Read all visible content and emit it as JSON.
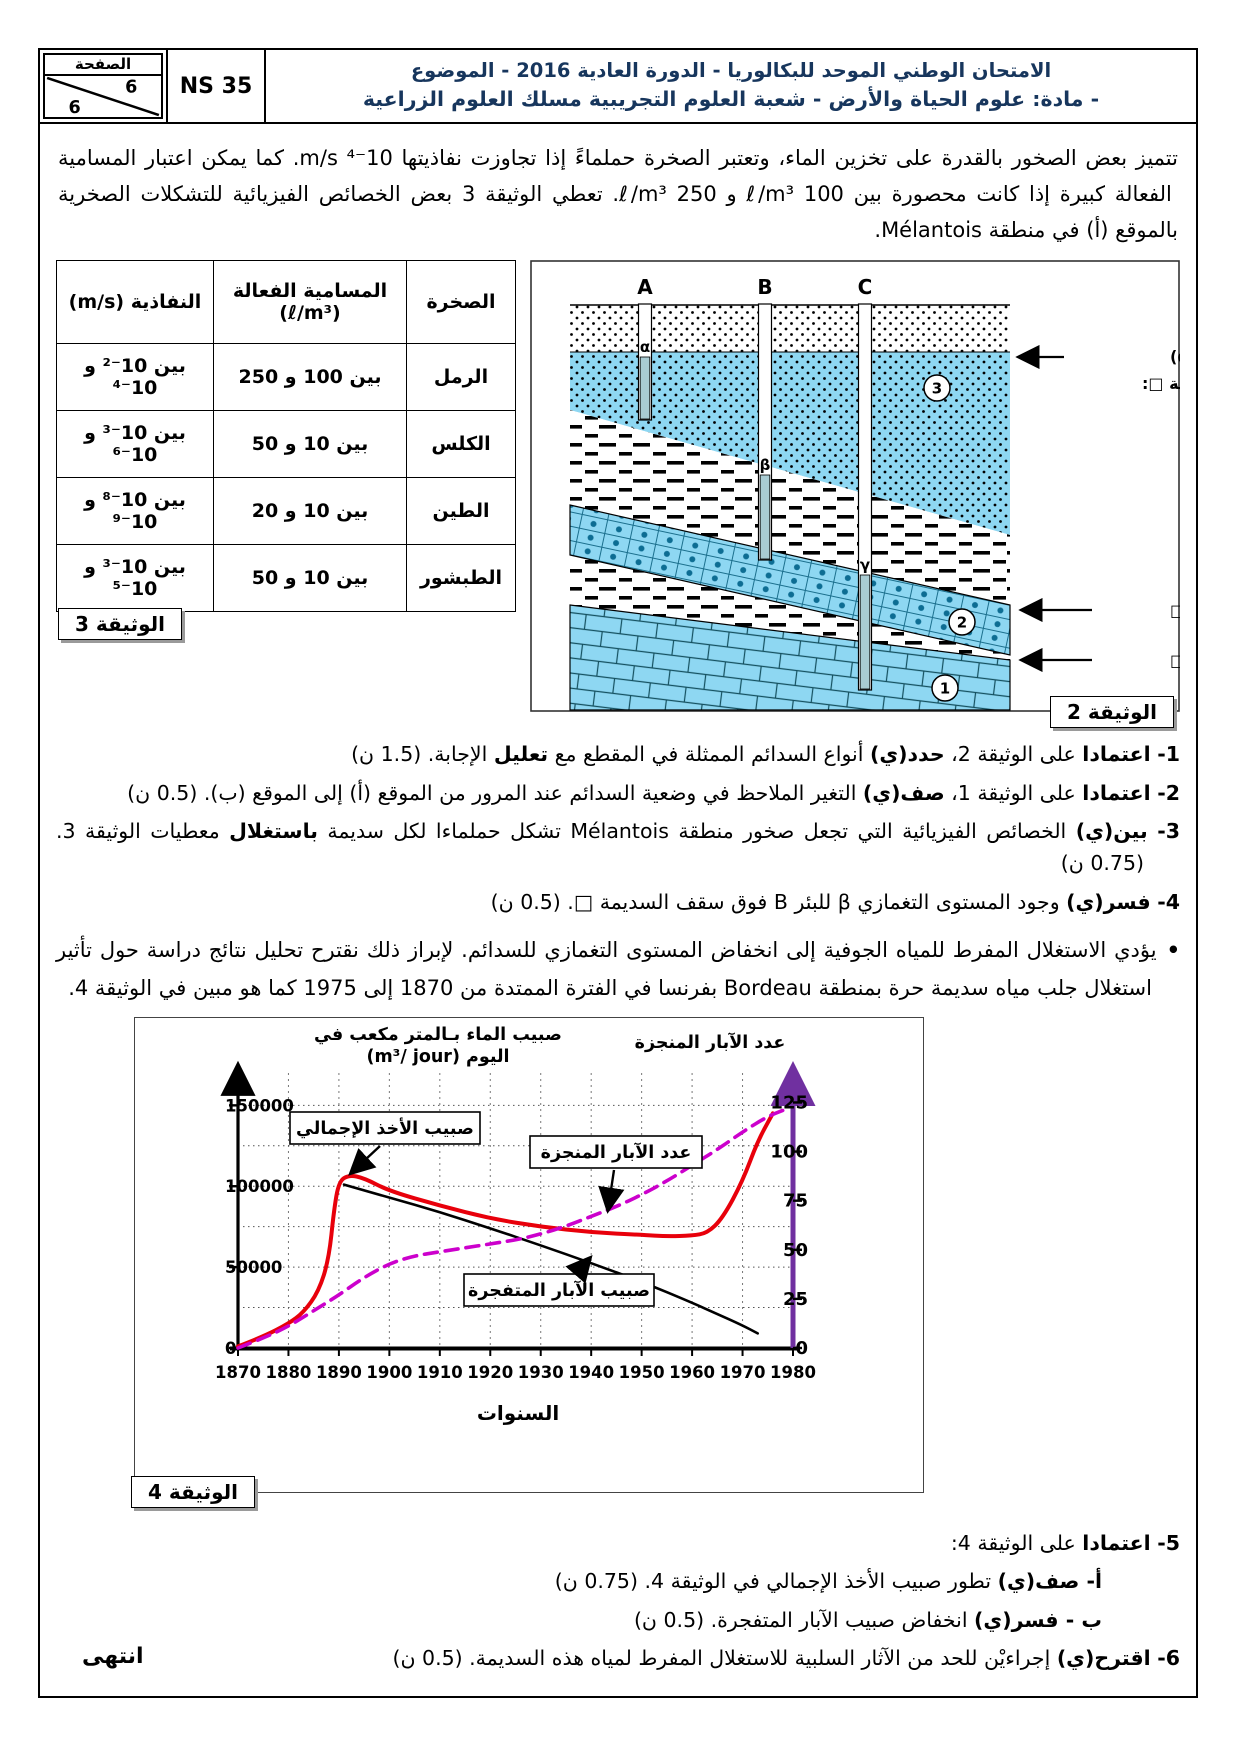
{
  "header": {
    "page_box_title": "الصفحة",
    "page_num": "6",
    "page_total": "6",
    "ns": "NS 35",
    "title_line1": "الامتحان الوطني الموحد للبكالوريا - الدورة العادية  2016 - الموضوع",
    "title_line2": "- مادة: علوم الحياة والأرض - شعبة العلوم التجريبية مسلك العلوم الزراعية",
    "title_color": "#17365d"
  },
  "intro": "تتميز بعض الصخور بالقدرة على تخزين الماء، وتعتبر الصخرة حملماءً إذا تجاوزت نفاذيتها 10⁻⁴ m/s. كما يمكن اعتبار المسامية الفعالة كبيرة إذا كانت محصورة بين 100 ℓ/m³ و 250 ℓ/m³. تعطي  الوثيقة 3 بعض الخصائص الفيزيائية للتشكلات الصخرية بالموقع (أ) في  منطقة Mélantois.",
  "doc3": {
    "label": "الوثيقة 3",
    "col_rock": "الصخرة",
    "col_porosity_l1": "المسامية الفعالة",
    "col_porosity_l2": "(ℓ/m³)",
    "col_perm": "النفاذية (m/s)",
    "rows": [
      {
        "rock": "الرمل",
        "por": "بين 100 و 250",
        "perm": "بين 10⁻² و 10⁻⁴"
      },
      {
        "rock": "الكلس",
        "por": "بين 10 و 50",
        "perm": "بين 10⁻³ و 10⁻⁶"
      },
      {
        "rock": "الطين",
        "por": "بين 10 و 20",
        "perm": "بين 10⁻⁸ و 10⁻⁹"
      },
      {
        "rock": "الطبشور",
        "por": "بين 10 و 50",
        "perm": "بين 10⁻³ و 10⁻⁵"
      }
    ]
  },
  "doc2": {
    "label": "الوثيقة 2",
    "well_a": "A",
    "well_b": "B",
    "well_c": "C",
    "alpha": "α",
    "beta": "β",
    "gamma": "γ",
    "num1": "1",
    "num2": "2",
    "num3": "3",
    "ann_alpha_line1": "المستوى التغمازي(α)",
    "ann_alpha_line2": "للسديمة □:",
    "ann_roof_2": "سقف السديمة □",
    "ann_roof_1": "سقف السديمة □",
    "water_color": "#8ed7f2"
  },
  "questions": {
    "q1": {
      "num": "1-",
      "b1": "اعتمادا",
      "t1": " على الوثيقة 2، ",
      "b2": "حدد(ي)",
      "t2": " أنواع السدائم الممثلة في المقطع مع ",
      "b3": "تعليل",
      "t3": " الإجابة. (1.5 ن)"
    },
    "q2": {
      "num": "2-",
      "b1": "اعتمادا",
      "t1": " على الوثيقة 1، ",
      "b2": "صف(ي)",
      "t2": " التغير الملاحظ في وضعية السدائم عند المرور من الموقع (أ) إلى الموقع (ب). (0.5 ن)"
    },
    "q3": {
      "num": "3-",
      "b1": "بين(ي)",
      "t1": " الخصائص الفيزيائية التي تجعل صخور منطقة Mélantois تشكل حملماءا لكل سديمة ",
      "b2": "باستغلال",
      "t2": " معطيات الوثيقة 3. (0.75 ن)"
    },
    "q4": {
      "num": "4-",
      "b1": "فسر(ي)",
      "t1": " وجود المستوى التغمازي β للبئر B فوق سقف السديمة □. (0.5 ن)"
    },
    "q5": {
      "num": "5-",
      "b1": "اعتمادا",
      "t1": " على الوثيقة 4:"
    },
    "q5a": {
      "b1": "أ- صف(ي)",
      "t1": " تطور صبيب الأخذ الإجمالي في الوثيقة 4. (0.75 ن)"
    },
    "q5b": {
      "b1": "ب - فسر(ي)",
      "t1": " انخفاض صبيب الآبار المتفجرة. (0.5 ن)"
    },
    "q6": {
      "num": "6-",
      "b1": "اقترح(ي)",
      "t1": " إجراءيْن للحد من الآثار السلبية للاستغلال المفرط لمياه هذه السديمة. (0.5 ن)"
    }
  },
  "bullet": {
    "mark": "•",
    "text": "يؤدي الاستغلال المفرط للمياه الجوفية إلى انخفاض المستوى التغمازي للسدائم. لإبراز ذلك نقترح تحليل نتائج دراسة حول تأثير استغلال جلب مياه سديمة حرة بمنطقة Bordeau بفرنسا في الفترة الممتدة من 1870 إلى 1975 كما هو مبين في الوثيقة 4."
  },
  "chart_data": {
    "type": "line",
    "xlabel": "السنوات",
    "ylabel_left_l1": "صبيب الماء بـالمتر مكعب في",
    "ylabel_left_l2": "اليوم (m³/ jour)",
    "ylabel_right": "عدد الآبار المنجزة",
    "xlim": [
      1870,
      1980
    ],
    "ylim_left": [
      0,
      170000
    ],
    "ylim_right": [
      0,
      140
    ],
    "x_ticks": [
      1870,
      1880,
      1890,
      1900,
      1910,
      1920,
      1930,
      1940,
      1950,
      1960,
      1970,
      1980
    ],
    "yleft_ticks": [
      0,
      50000,
      100000,
      150000
    ],
    "yright_ticks": [
      0,
      25,
      50,
      75,
      100,
      125
    ],
    "grid": true,
    "legend_position": "labels-on-plot",
    "right_axis_color": "#7030a0",
    "series": [
      {
        "name": "صبيب الأخذ الإجمالي",
        "axis": "left",
        "color": "#e8000b",
        "style": "solid",
        "width": 4,
        "x": [
          1870,
          1875,
          1880,
          1883,
          1886,
          1888,
          1889,
          1890,
          1892,
          1895,
          1900,
          1910,
          1920,
          1930,
          1940,
          1950,
          1955,
          1960,
          1963,
          1966,
          1970,
          1973,
          1976
        ],
        "y": [
          1000,
          7000,
          15000,
          22000,
          35000,
          55000,
          85000,
          103000,
          107000,
          105000,
          97000,
          88000,
          80000,
          75000,
          71500,
          70000,
          69000,
          69500,
          71000,
          80000,
          103000,
          128000,
          145000
        ]
      },
      {
        "name": "صبيب الآبار المتفجرة",
        "axis": "left",
        "color": "#000000",
        "style": "solid",
        "width": 2.6,
        "x": [
          1891,
          1900,
          1910,
          1920,
          1930,
          1940,
          1950,
          1960,
          1965,
          1970,
          1973
        ],
        "y": [
          101000,
          93000,
          84000,
          74000,
          63500,
          52500,
          41000,
          28000,
          21000,
          14000,
          9000
        ]
      },
      {
        "name": "عدد الآبار المنجزة",
        "axis": "right",
        "color": "#cc00cc",
        "style": "dashed",
        "width": 3.6,
        "x": [
          1870,
          1875,
          1880,
          1885,
          1890,
          1895,
          1900,
          1905,
          1910,
          1915,
          1920,
          1925,
          1930,
          1935,
          1940,
          1945,
          1950,
          1955,
          1960,
          1965,
          1970,
          1975,
          1979
        ],
        "y": [
          0,
          5,
          11,
          19,
          27,
          36,
          43,
          47,
          49,
          51,
          53,
          55,
          58,
          62,
          67,
          72,
          78,
          85,
          93,
          101,
          110,
          118,
          122
        ]
      }
    ]
  },
  "doc4": {
    "label": "الوثيقة 4"
  },
  "footer": {
    "end": "انتهى"
  }
}
